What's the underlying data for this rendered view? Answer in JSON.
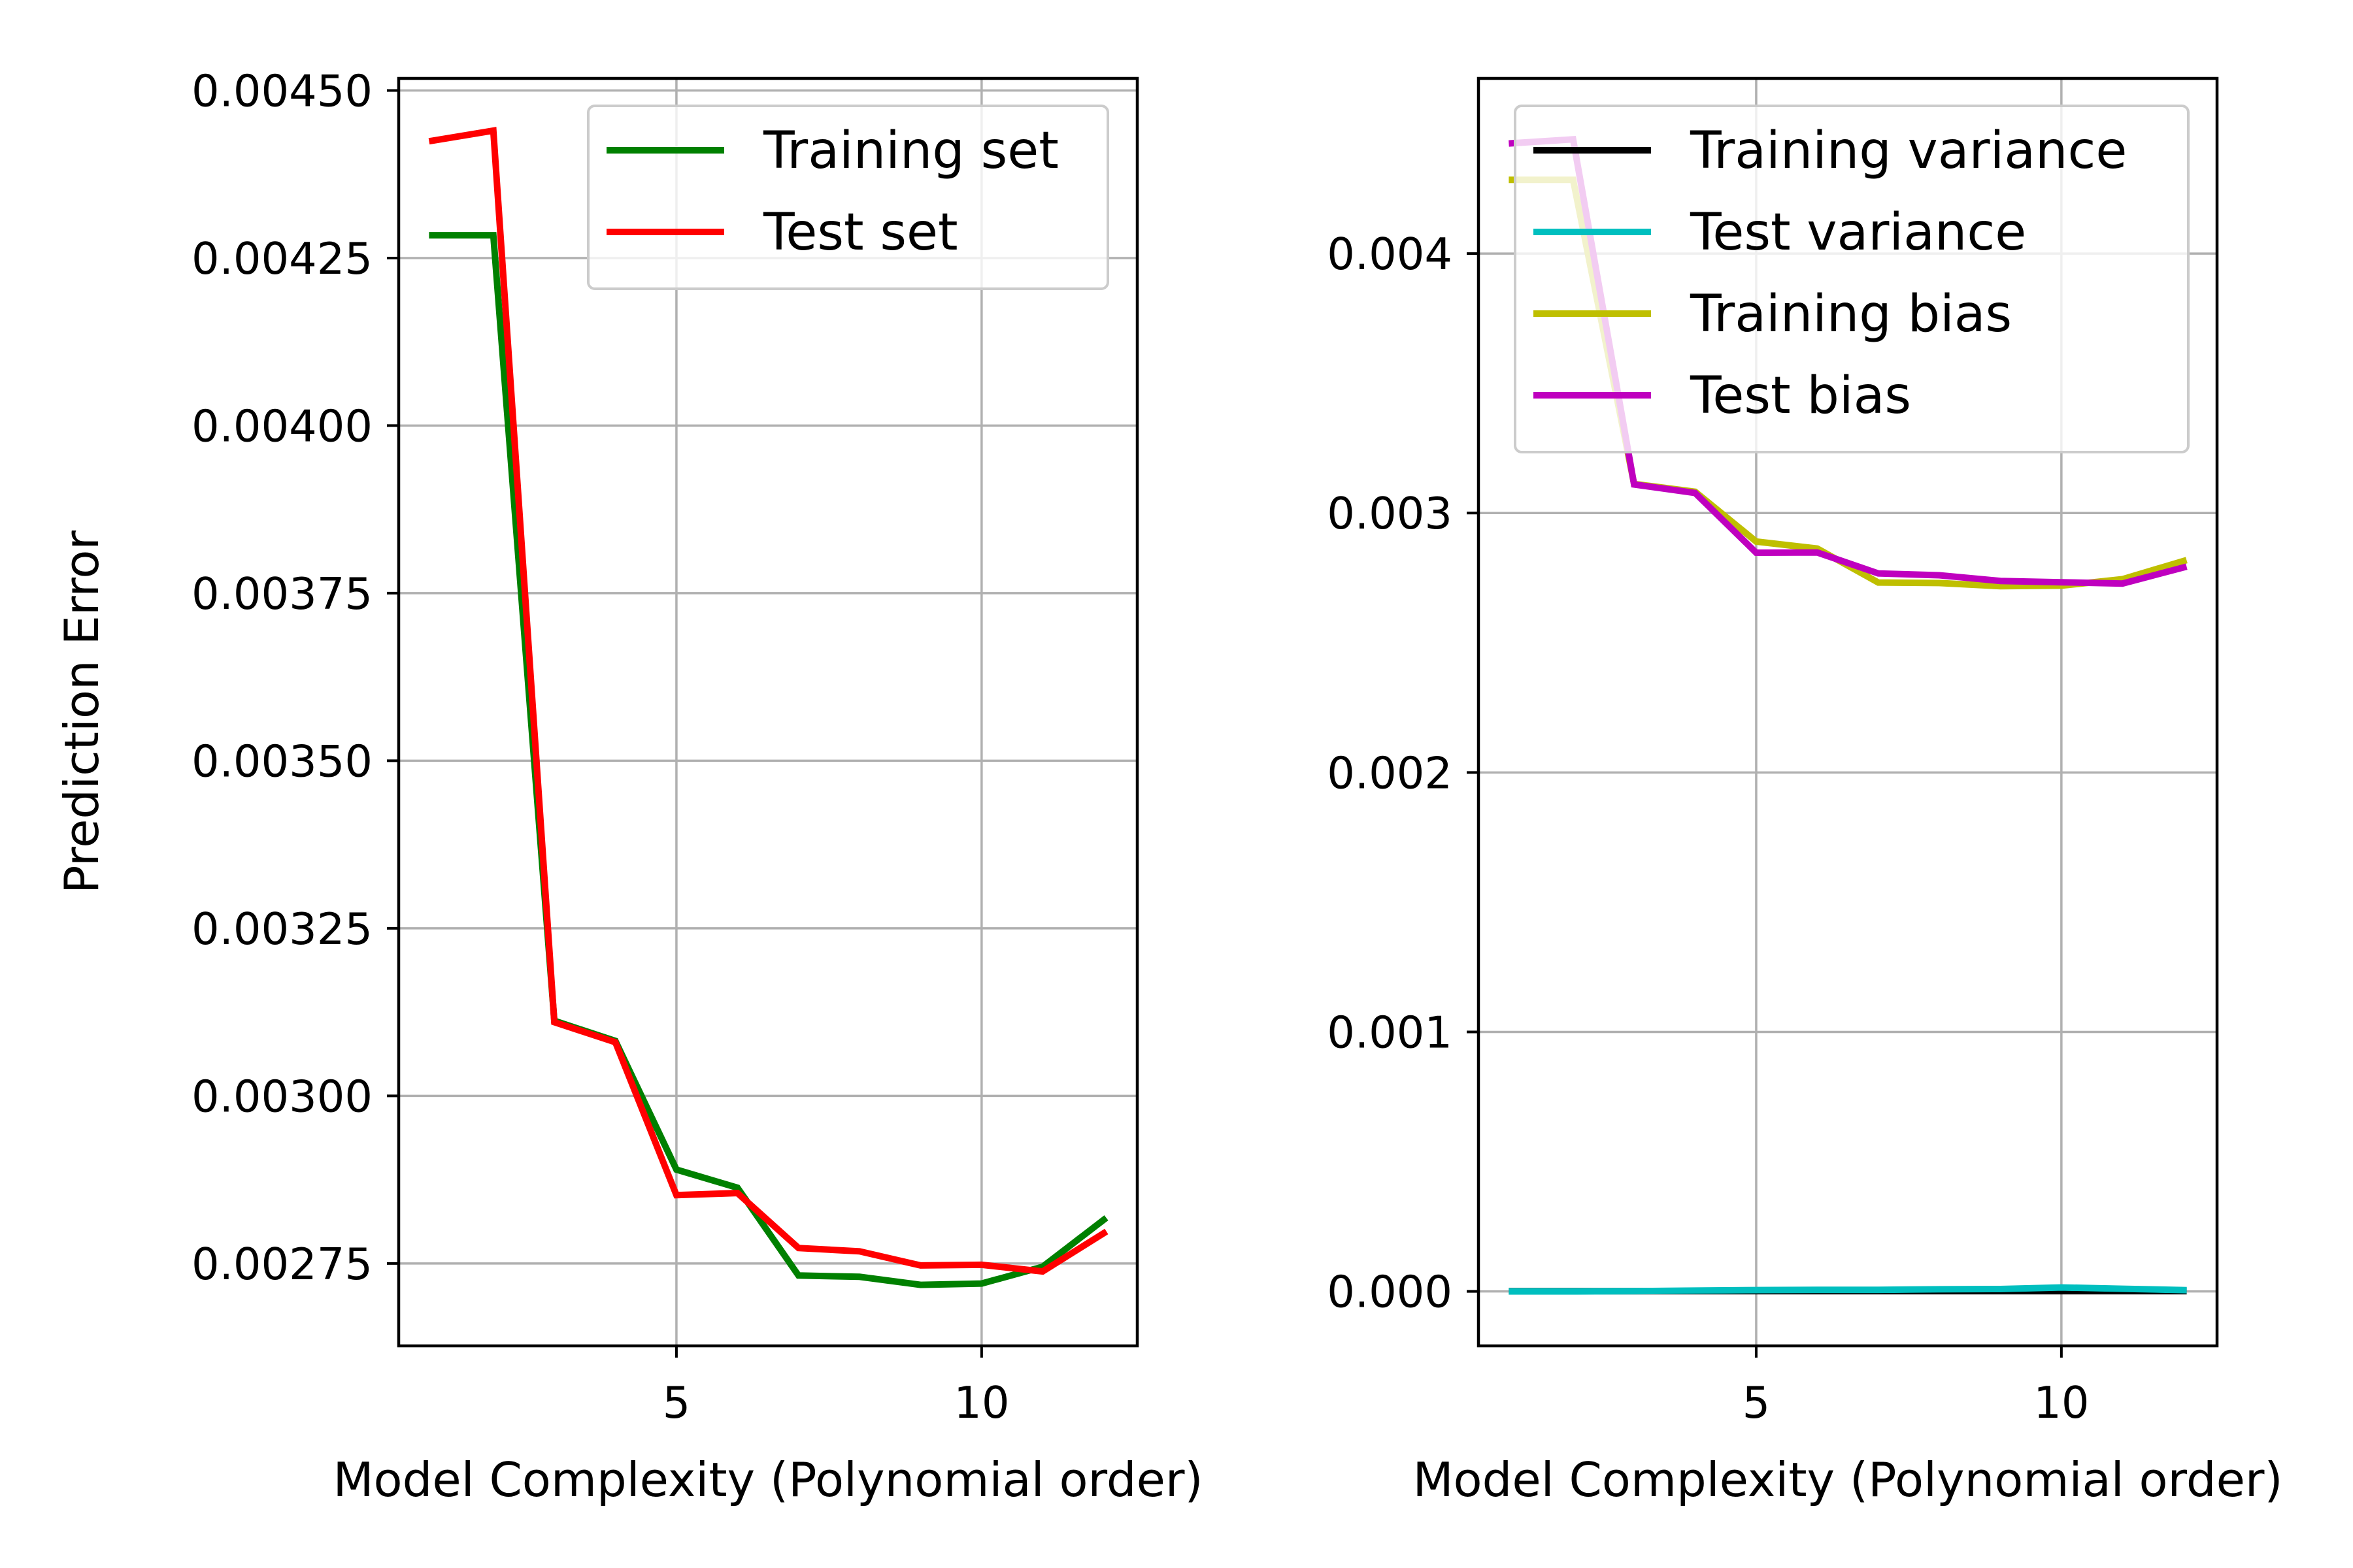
{
  "colors": {
    "training_set": "#008000",
    "test_set": "#ff0000",
    "training_variance": "#000000",
    "test_variance": "#00bfbf",
    "training_bias": "#bfbf00",
    "test_bias": "#bf00bf",
    "grid": "#b0b0b0"
  },
  "chart_data": [
    {
      "type": "line",
      "xlabel": "Model Complexity (Polynomial order)",
      "ylabel": "Prediction Error",
      "xlim": [
        0.45,
        12.55
      ],
      "ylim": [
        0.002627,
        0.004518
      ],
      "xticks": [
        5,
        10
      ],
      "yticks": [
        0.00275,
        0.003,
        0.00325,
        0.0035,
        0.00375,
        0.004,
        0.00425,
        0.0045
      ],
      "ytick_labels": [
        "0.00275",
        "0.00300",
        "0.00325",
        "0.00350",
        "0.00375",
        "0.00400",
        "0.00425",
        "0.00450"
      ],
      "grid": true,
      "legend_position": "top-right",
      "x": [
        1,
        2,
        3,
        4,
        5,
        6,
        7,
        8,
        9,
        10,
        11,
        12
      ],
      "series": [
        {
          "name": "Training set",
          "color_key": "training_set",
          "values": [
            0.004284,
            0.004284,
            0.003112,
            0.003082,
            0.00289,
            0.002863,
            0.002732,
            0.00273,
            0.002718,
            0.00272,
            0.002745,
            0.002815
          ]
        },
        {
          "name": "Test set",
          "color_key": "test_set",
          "values": [
            0.004425,
            0.00444,
            0.00311,
            0.00308,
            0.002852,
            0.002855,
            0.002773,
            0.002768,
            0.002747,
            0.002748,
            0.002738,
            0.002795
          ]
        }
      ]
    },
    {
      "type": "line",
      "xlabel": "Model Complexity (Polynomial order)",
      "ylabel": "",
      "xlim": [
        0.45,
        12.55
      ],
      "ylim": [
        -0.00021,
        0.004675
      ],
      "xticks": [
        5,
        10
      ],
      "yticks": [
        0.0,
        0.001,
        0.002,
        0.003,
        0.004
      ],
      "ytick_labels": [
        "0.000",
        "0.001",
        "0.002",
        "0.003",
        "0.004"
      ],
      "grid": true,
      "legend_position": "top-right",
      "x": [
        1,
        2,
        3,
        4,
        5,
        6,
        7,
        8,
        9,
        10,
        11,
        12
      ],
      "series": [
        {
          "name": "Training variance",
          "color_key": "training_variance",
          "values": [
            1e-06,
            1e-06,
            1e-06,
            1e-06,
            1e-06,
            1e-06,
            1e-06,
            1e-06,
            1e-06,
            1e-06,
            1e-06,
            1e-06
          ]
        },
        {
          "name": "Test variance",
          "color_key": "test_variance",
          "values": [
            0.0,
            0.0,
            1e-06,
            3e-06,
            5e-06,
            6e-06,
            6e-06,
            8e-06,
            9e-06,
            1.5e-05,
            1e-05,
            5e-06
          ]
        },
        {
          "name": "Training bias",
          "color_key": "training_bias",
          "values": [
            0.004284,
            0.004284,
            0.003112,
            0.003082,
            0.00289,
            0.002863,
            0.002732,
            0.00273,
            0.002718,
            0.00272,
            0.002745,
            0.002815
          ]
        },
        {
          "name": "Test bias",
          "color_key": "test_bias",
          "values": [
            0.004425,
            0.00444,
            0.00311,
            0.003077,
            0.002847,
            0.002848,
            0.002767,
            0.00276,
            0.002738,
            0.002733,
            0.002728,
            0.00279
          ]
        }
      ]
    }
  ]
}
